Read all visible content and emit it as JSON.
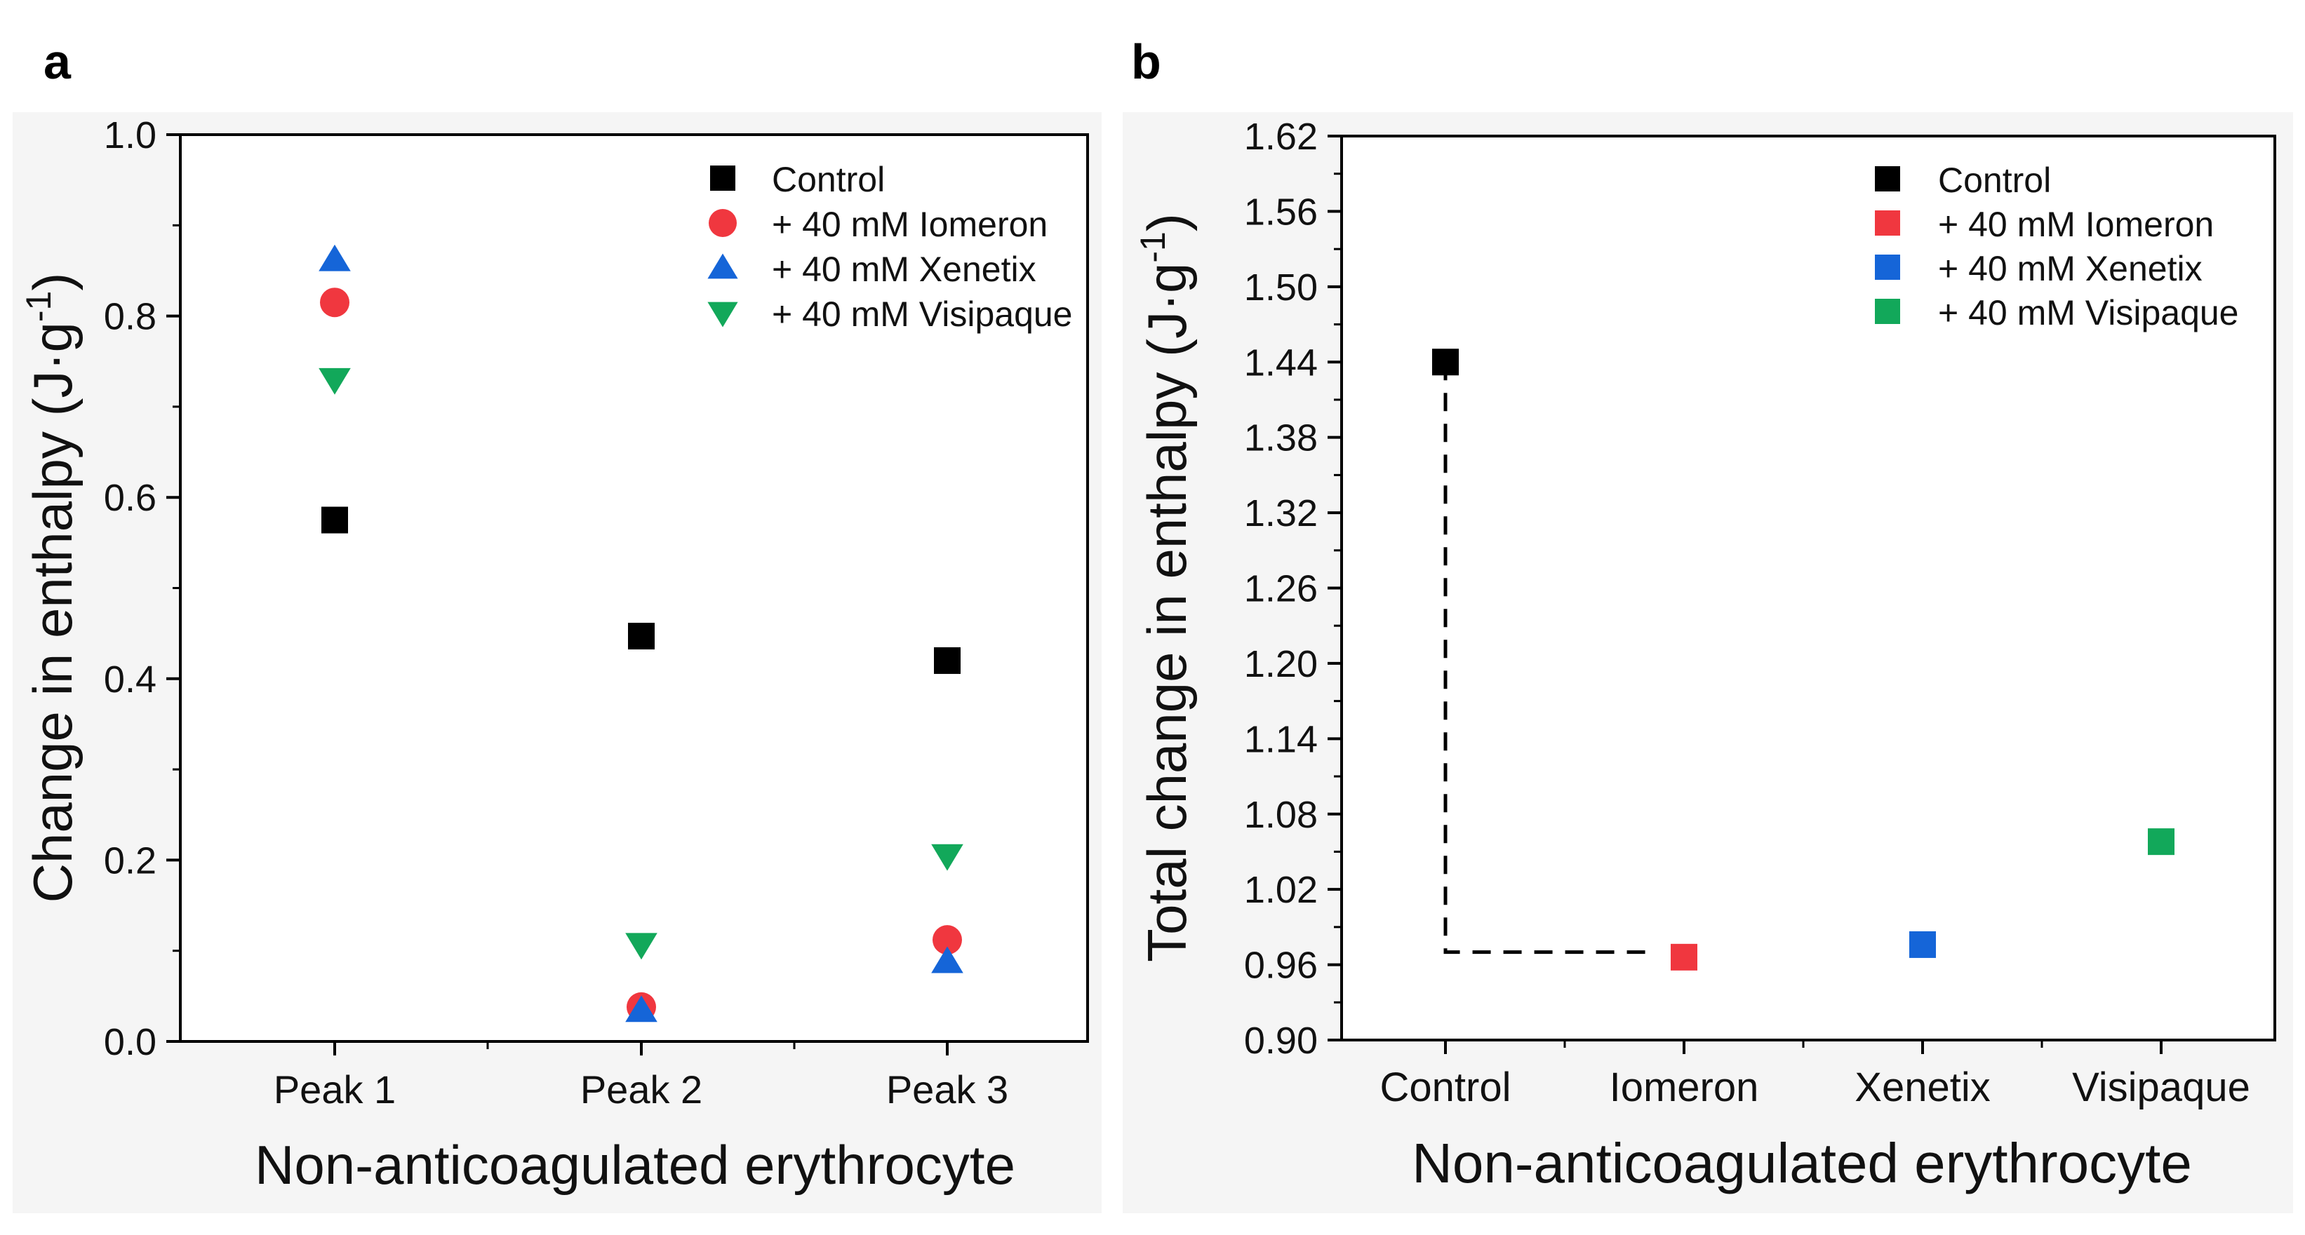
{
  "panel_labels": [
    "a",
    "b"
  ],
  "chart_data": [
    {
      "panel": "a",
      "type": "scatter",
      "categories": [
        "Peak 1",
        "Peak 2",
        "Peak 3"
      ],
      "xlabel": "Non-anticoagulated erythrocyte",
      "ylabel": "Change in enthalpy (J·g",
      "ylabel_sup": "-1",
      "ylabel_close": ")",
      "ylim": [
        0.0,
        1.0
      ],
      "yticks": [
        "0.0",
        "0.2",
        "0.4",
        "0.6",
        "0.8",
        "1.0"
      ],
      "legend_position": "top-right",
      "series": [
        {
          "name": "Control",
          "marker": "square",
          "color": "#000000",
          "values": [
            0.575,
            0.447,
            0.42
          ]
        },
        {
          "name": "+ 40 mM Iomeron",
          "marker": "circle",
          "color": "#f0373f",
          "values": [
            0.815,
            0.038,
            0.112
          ]
        },
        {
          "name": "+ 40 mM Xenetix",
          "marker": "triangle-up",
          "color": "#1565d8",
          "values": [
            0.862,
            0.034,
            0.088
          ]
        },
        {
          "name": "+ 40 mM Visipaque",
          "marker": "triangle-down",
          "color": "#12a85a",
          "values": [
            0.73,
            0.107,
            0.205
          ]
        }
      ]
    },
    {
      "panel": "b",
      "type": "scatter",
      "categories": [
        "Control",
        "Iomeron",
        "Xenetix",
        "Visipaque"
      ],
      "xlabel": "Non-anticoagulated erythrocyte",
      "ylabel": "Total change in enthalpy (J·g",
      "ylabel_sup": "-1",
      "ylabel_close": ")",
      "ylim": [
        0.9,
        1.62
      ],
      "yticks": [
        "0.90",
        "0.96",
        "1.02",
        "1.08",
        "1.14",
        "1.20",
        "1.26",
        "1.32",
        "1.38",
        "1.44",
        "1.50",
        "1.56",
        "1.62"
      ],
      "legend_position": "top-right",
      "series": [
        {
          "name": "Control",
          "marker": "square",
          "color": "#000000",
          "values": [
            1.44,
            null,
            null,
            null
          ]
        },
        {
          "name": "+ 40 mM Iomeron",
          "marker": "square",
          "color": "#f0373f",
          "values": [
            null,
            0.966,
            null,
            null
          ]
        },
        {
          "name": "+ 40 mM Xenetix",
          "marker": "square",
          "color": "#1565d8",
          "values": [
            null,
            null,
            0.976,
            null
          ]
        },
        {
          "name": "+ 40 mM Visipaque",
          "marker": "square",
          "color": "#12a85a",
          "values": [
            null,
            null,
            null,
            1.058
          ]
        }
      ],
      "connector": {
        "style": "dashed",
        "from_category": "Control",
        "to_category": "Iomeron",
        "y_from": 1.44,
        "y_to": 0.97
      }
    }
  ]
}
